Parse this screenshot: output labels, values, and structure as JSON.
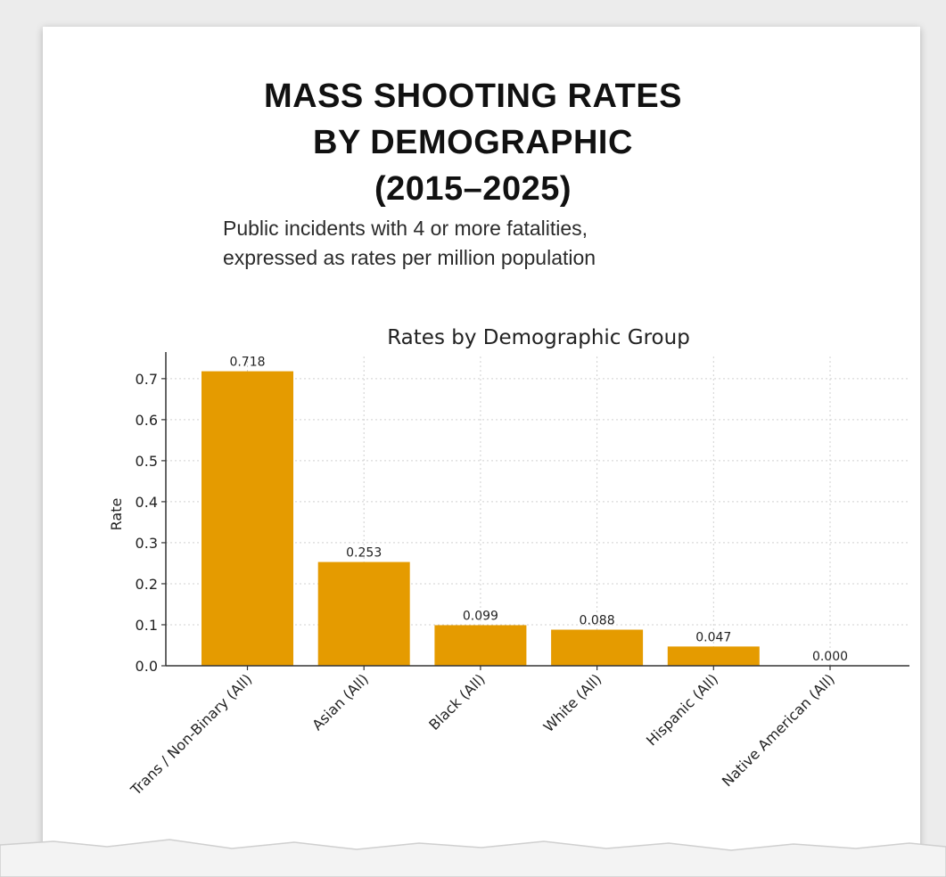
{
  "header": {
    "title_lines": [
      "MASS SHOOTING RATES",
      "BY DEMOGRAPHIC",
      "(2015–2025)"
    ],
    "subtitle_lines": [
      "Public incidents with 4 or more fatalities,",
      "expressed as rates per million population"
    ]
  },
  "colors": {
    "bar": "#e59b00",
    "axis": "#333333",
    "grid": "#d0d0d0",
    "text": "#222222"
  },
  "chart_data": {
    "type": "bar",
    "title": "Rates by Demographic Group",
    "xlabel": "",
    "ylabel": "Rate",
    "categories": [
      "Trans / Non-Binary (All)",
      "Asian (All)",
      "Black (All)",
      "White (All)",
      "Hispanic (All)",
      "Native American (All)"
    ],
    "values": [
      0.718,
      0.253,
      0.099,
      0.088,
      0.047,
      0.0
    ],
    "value_labels": [
      "0.718",
      "0.253",
      "0.099",
      "0.088",
      "0.047",
      "0.000"
    ],
    "yticks": [
      0.0,
      0.1,
      0.2,
      0.3,
      0.4,
      0.5,
      0.6,
      0.7
    ],
    "ytick_labels": [
      "0.0",
      "0.1",
      "0.2",
      "0.3",
      "0.4",
      "0.5",
      "0.6",
      "0.7"
    ],
    "ylim": [
      0,
      0.754
    ],
    "grid": true,
    "legend": "none"
  }
}
